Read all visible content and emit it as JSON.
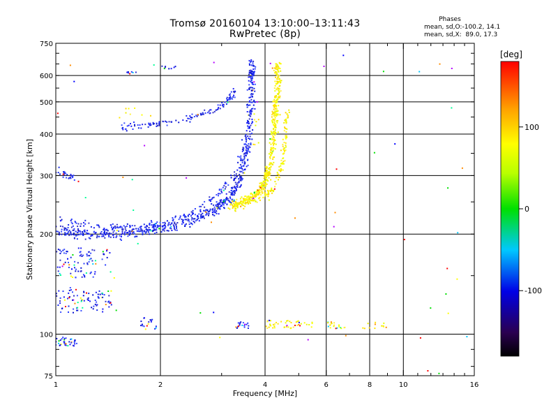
{
  "header": {
    "title": "Tromsø 20160104 13:10:00–13:11:43",
    "subtitle": "RwPretec (8p)",
    "phases_heading": "Phases",
    "phases_o": "mean, sd,O:-100.2, 14.1",
    "phases_x": "mean, sd,X:  89.0, 17.3"
  },
  "chart_data": {
    "type": "scatter",
    "title": "Tromsø 20160104 13:10:00–13:11:43",
    "subtitle": "RwPretec (8p)",
    "xlabel": "Frequency [MHz]",
    "ylabel": "Stationary phase Virtual Height [km]",
    "xscale": "log",
    "yscale": "log",
    "xlim": [
      1,
      16
    ],
    "ylim": [
      75,
      750
    ],
    "xticks": [
      1,
      2,
      4,
      6,
      8,
      10,
      16
    ],
    "xtick_labels": [
      "1",
      "2",
      "4",
      "6",
      "8",
      "10",
      "16"
    ],
    "x_gridlines": [
      2,
      4,
      6,
      8,
      10
    ],
    "yticks": [
      75,
      100,
      200,
      300,
      400,
      500,
      600,
      750
    ],
    "ytick_labels": [
      "75",
      "100",
      "200",
      "300",
      "400",
      "500",
      "600",
      "750"
    ],
    "y_gridlines": [
      100,
      200,
      300,
      400,
      500,
      600
    ],
    "grid": true,
    "colorbar": {
      "label": "[deg]",
      "range": [
        -180,
        180
      ],
      "ticks": [
        100,
        0,
        -100
      ],
      "tick_labels": [
        "100",
        "0",
        "-100"
      ],
      "colormap": "rainbow"
    },
    "series": [
      {
        "name": "O",
        "phase": -100,
        "clusters": [
          {
            "type": "curve",
            "pts": [
              [
                1.0,
                205
              ],
              [
                1.2,
                201
              ],
              [
                1.5,
                200
              ],
              [
                1.8,
                205
              ],
              [
                2.1,
                210
              ],
              [
                2.5,
                222
              ],
              [
                2.9,
                238
              ],
              [
                3.2,
                260
              ],
              [
                3.4,
                295
              ],
              [
                3.55,
                360
              ],
              [
                3.62,
                440
              ],
              [
                3.65,
                550
              ],
              [
                3.67,
                660
              ]
            ],
            "n": 700,
            "spread": 0.05
          },
          {
            "type": "curve",
            "pts": [
              [
                1.0,
                222
              ],
              [
                1.3,
                212
              ],
              [
                1.7,
                208
              ],
              [
                2.1,
                216
              ],
              [
                2.5,
                232
              ],
              [
                2.9,
                262
              ],
              [
                3.3,
                305
              ],
              [
                3.5,
                380
              ]
            ],
            "n": 160,
            "spread": 0.035
          },
          {
            "type": "curve",
            "pts": [
              [
                1.55,
                418
              ],
              [
                1.9,
                428
              ],
              [
                2.4,
                443
              ],
              [
                2.8,
                465
              ],
              [
                3.1,
                500
              ],
              [
                3.3,
                545
              ]
            ],
            "n": 130,
            "spread": 0.03
          },
          {
            "type": "curve",
            "pts": [
              [
                1.02,
                308
              ],
              [
                1.12,
                296
              ]
            ],
            "n": 25,
            "spread": 0.04
          },
          {
            "type": "blob",
            "x": [
              1.0,
              1.45
            ],
            "y": [
              148,
              182
            ],
            "n": 90
          },
          {
            "type": "blob",
            "x": [
              1.0,
              1.45
            ],
            "y": [
              116,
              138
            ],
            "n": 90
          },
          {
            "type": "blob",
            "x": [
              1.0,
              1.15
            ],
            "y": [
              92,
              98
            ],
            "n": 35
          },
          {
            "type": "blob",
            "x": [
              1.75,
              1.95
            ],
            "y": [
              103,
              112
            ],
            "n": 18
          },
          {
            "type": "blob",
            "x": [
              3.3,
              3.6
            ],
            "y": [
              104,
              109
            ],
            "n": 18
          },
          {
            "type": "blob",
            "x": [
              1.6,
              1.75
            ],
            "y": [
              610,
              616
            ],
            "n": 6
          },
          {
            "type": "blob",
            "x": [
              2.0,
              2.25
            ],
            "y": [
              620,
              645
            ],
            "n": 8
          },
          {
            "type": "scatter",
            "x": [
              1.0,
              16
            ],
            "y": [
              75,
              700
            ],
            "n": 30
          }
        ]
      },
      {
        "name": "X",
        "phase": 89,
        "clusters": [
          {
            "type": "curve",
            "pts": [
              [
                3.2,
                242
              ],
              [
                3.5,
                250
              ],
              [
                3.8,
                262
              ],
              [
                4.0,
                285
              ],
              [
                4.15,
                330
              ],
              [
                4.25,
                400
              ],
              [
                4.3,
                480
              ],
              [
                4.35,
                560
              ],
              [
                4.35,
                640
              ]
            ],
            "n": 520,
            "spread": 0.045
          },
          {
            "type": "curve",
            "pts": [
              [
                3.8,
                250
              ],
              [
                4.2,
                270
              ],
              [
                4.45,
                310
              ],
              [
                4.55,
                360
              ],
              [
                4.6,
                420
              ],
              [
                4.65,
                470
              ]
            ],
            "n": 110,
            "spread": 0.035
          },
          {
            "type": "blob",
            "x": [
              4.0,
              5.5
            ],
            "y": [
              104,
              110
            ],
            "n": 45
          },
          {
            "type": "blob",
            "x": [
              1.5,
              1.9
            ],
            "y": [
              448,
              480
            ],
            "n": 8
          },
          {
            "type": "blob",
            "x": [
              3.7,
              3.9
            ],
            "y": [
              360,
              520
            ],
            "n": 10
          },
          {
            "type": "blob",
            "x": [
              6.0,
              9.0
            ],
            "y": [
              104,
              109
            ],
            "n": 30
          },
          {
            "type": "scatter",
            "x": [
              1.0,
              16
            ],
            "y": [
              75,
              700
            ],
            "n": 25
          }
        ]
      }
    ]
  }
}
